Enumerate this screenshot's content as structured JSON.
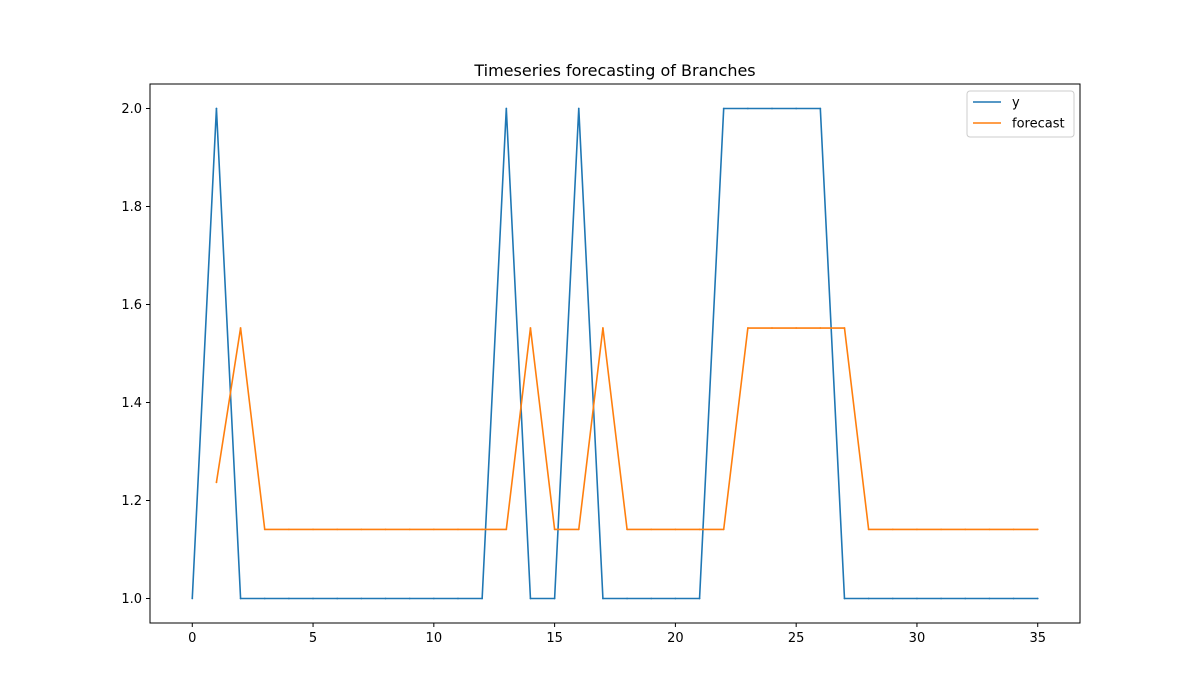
{
  "chart_data": {
    "type": "line",
    "title": "Timeseries forecasting of Branches",
    "xlabel": "",
    "ylabel": "",
    "xlim": [
      -1.75,
      36.75
    ],
    "ylim": [
      0.95,
      2.05
    ],
    "x_ticks": [
      0,
      5,
      10,
      15,
      20,
      25,
      30,
      35
    ],
    "y_ticks": [
      1.0,
      1.2,
      1.4,
      1.6,
      1.8,
      2.0
    ],
    "y_tick_labels": [
      "1.0",
      "1.2",
      "1.4",
      "1.6",
      "1.8",
      "2.0"
    ],
    "grid": false,
    "legend_position": "top-right",
    "series": [
      {
        "name": "y",
        "color": "#1f77b4",
        "x": [
          0,
          1,
          2,
          3,
          4,
          5,
          6,
          7,
          8,
          9,
          10,
          11,
          12,
          13,
          14,
          15,
          16,
          17,
          18,
          19,
          20,
          21,
          22,
          23,
          24,
          25,
          26,
          27,
          28,
          29,
          30,
          31,
          32,
          33,
          34,
          35
        ],
        "values": [
          1,
          2,
          1,
          1,
          1,
          1,
          1,
          1,
          1,
          1,
          1,
          1,
          1,
          2,
          1,
          1,
          2,
          1,
          1,
          1,
          1,
          1,
          2,
          2,
          2,
          2,
          2,
          1,
          1,
          1,
          1,
          1,
          1,
          1,
          1,
          1
        ]
      },
      {
        "name": "forecast",
        "color": "#ff7f0e",
        "x": [
          1,
          2,
          3,
          4,
          5,
          6,
          7,
          8,
          9,
          10,
          11,
          12,
          13,
          14,
          15,
          16,
          17,
          18,
          19,
          20,
          21,
          22,
          23,
          24,
          25,
          26,
          27,
          28,
          29,
          30,
          31,
          32,
          33,
          34,
          35
        ],
        "values": [
          1.237,
          1.552,
          1.141,
          1.141,
          1.141,
          1.141,
          1.141,
          1.141,
          1.141,
          1.141,
          1.141,
          1.141,
          1.141,
          1.552,
          1.141,
          1.141,
          1.552,
          1.141,
          1.141,
          1.141,
          1.141,
          1.141,
          1.552,
          1.552,
          1.552,
          1.552,
          1.552,
          1.141,
          1.141,
          1.141,
          1.141,
          1.141,
          1.141,
          1.141,
          1.141
        ]
      }
    ]
  }
}
